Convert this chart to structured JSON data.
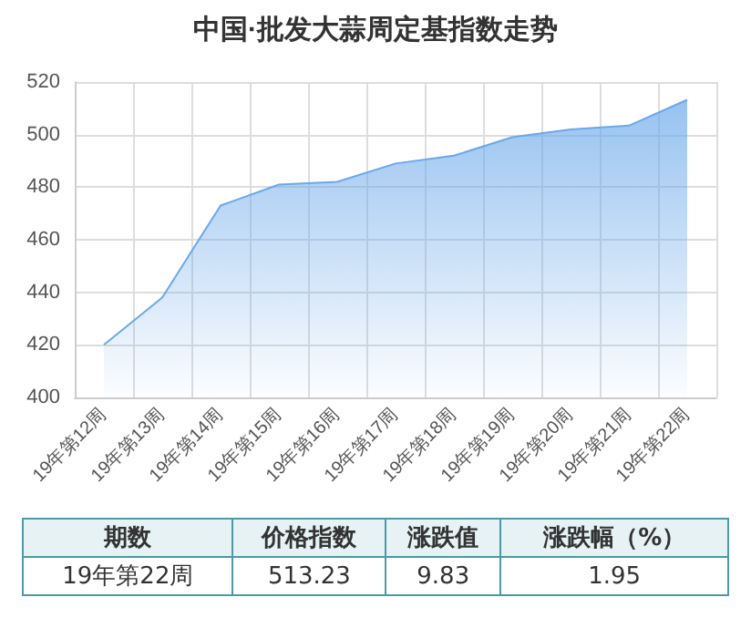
{
  "chart_data": {
    "type": "area",
    "title": "中国·批发大蒜周定基指数走势",
    "categories": [
      "19年第12周",
      "19年第13周",
      "19年第14周",
      "19年第15周",
      "19年第16周",
      "19年第17周",
      "19年第18周",
      "19年第19周",
      "19年第20周",
      "19年第21周",
      "19年第22周"
    ],
    "series": [
      {
        "color": "#6aa8ea",
        "values": [
          420,
          438,
          473,
          481,
          482,
          489,
          492,
          499,
          502,
          503.4,
          513.23
        ]
      }
    ],
    "ylim": [
      400,
      520
    ],
    "yticks": [
      400,
      420,
      440,
      460,
      480,
      500,
      520
    ],
    "grid": true,
    "annotations": [
      "期数",
      "价格指数",
      "涨跌值",
      "涨跌幅（%）",
      "19年第22周",
      "513.23",
      "9.83",
      "1.95"
    ]
  }
}
